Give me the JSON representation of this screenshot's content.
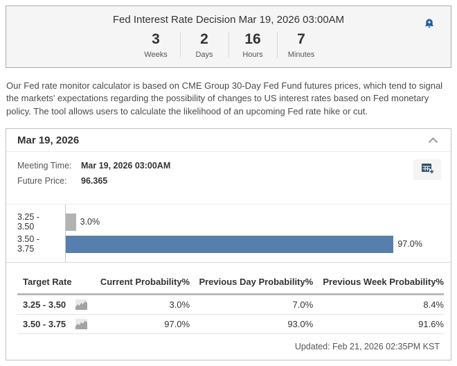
{
  "alert_box": {
    "title": "Fed Interest Rate Decision Mar 19, 2026 03:00AM",
    "countdown": [
      {
        "value": "3",
        "unit": "Weeks"
      },
      {
        "value": "2",
        "unit": "Days"
      },
      {
        "value": "16",
        "unit": "Hours"
      },
      {
        "value": "7",
        "unit": "Minutes"
      }
    ]
  },
  "description": "Our Fed rate monitor calculator is based on CME Group 30-Day Fed Fund futures prices, which tend to signal the markets' expectations regarding the possibility of changes to US interest rates based on Fed monetary policy. The tool allows users to calculate the likelihood of an upcoming Fed rate hike or cut.",
  "card": {
    "title": "Mar 19, 2026",
    "meeting_time_label": "Meeting Time:",
    "meeting_time_value": "Mar 19, 2026 03:00AM",
    "future_price_label": "Future Price:",
    "future_price_value": "96.365",
    "updated": "Updated: Feb 21, 2026 02:35PM KST"
  },
  "chart_data": {
    "type": "bar",
    "orientation": "horizontal",
    "categories": [
      "3.25 - 3.50",
      "3.50 - 3.75"
    ],
    "values": [
      3.0,
      97.0
    ],
    "value_labels": [
      "3.0%",
      "97.0%"
    ],
    "bar_colors": [
      "#b3b3b3",
      "#567fad"
    ],
    "xlim": [
      0,
      100
    ],
    "grid": false,
    "legend": false
  },
  "table": {
    "headers": [
      "Target Rate",
      "Current Probability%",
      "Previous Day Probability%",
      "Previous Week Probability%"
    ],
    "rows": [
      {
        "target_rate": "3.25 - 3.50",
        "current": "3.0%",
        "prev_day": "7.0%",
        "prev_week": "8.4%"
      },
      {
        "target_rate": "3.50 - 3.75",
        "current": "97.0%",
        "prev_day": "93.0%",
        "prev_week": "91.6%"
      }
    ]
  },
  "colors": {
    "accent_blue": "#1b5c9e",
    "bar_blue": "#567fad",
    "bar_grey": "#b3b3b3",
    "box_bg": "#f5f5f5"
  }
}
